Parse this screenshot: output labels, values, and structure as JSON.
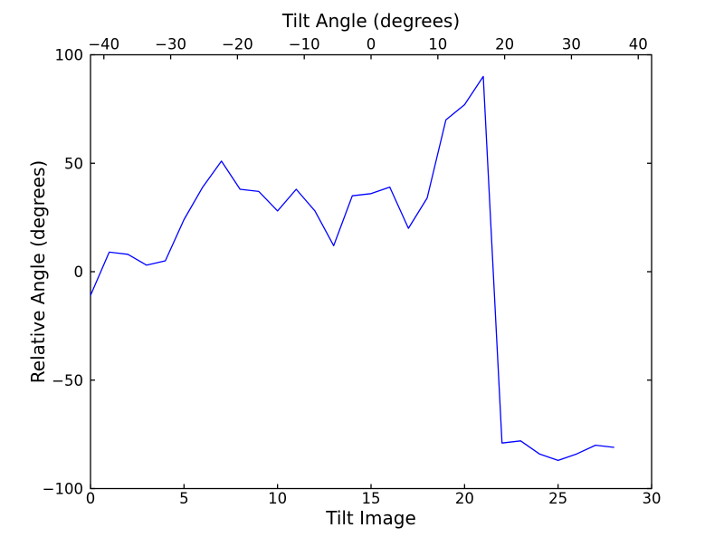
{
  "figure": {
    "background_color": "#ffffff"
  },
  "chart_data": {
    "type": "line",
    "title": "",
    "top_xlabel": "Tilt Angle (degrees)",
    "xlabel": "Tilt Image",
    "ylabel": "Relative Angle (degrees)",
    "x": [
      0,
      1,
      2,
      3,
      4,
      5,
      6,
      7,
      8,
      9,
      10,
      11,
      12,
      13,
      14,
      15,
      16,
      17,
      18,
      19,
      20,
      21,
      22,
      23,
      24,
      25,
      26,
      27,
      28
    ],
    "y": [
      -11,
      9,
      8,
      3,
      5,
      24,
      39,
      51,
      38,
      37,
      28,
      38,
      28,
      12,
      35,
      36,
      39,
      20,
      34,
      70,
      77,
      90,
      -79,
      -78,
      -84,
      -87,
      -84,
      -80,
      -81
    ],
    "xlim": [
      0,
      30
    ],
    "ylim": [
      -100,
      100
    ],
    "top_xlim": [
      -42,
      42
    ],
    "xticks": [
      0,
      5,
      10,
      15,
      20,
      25,
      30
    ],
    "xtick_labels": [
      "0",
      "5",
      "10",
      "15",
      "20",
      "25",
      "30"
    ],
    "yticks": [
      -100,
      -50,
      0,
      50,
      100
    ],
    "ytick_labels": [
      "−100",
      "−50",
      "0",
      "50",
      "100"
    ],
    "top_xticks": [
      -40,
      -30,
      -20,
      -10,
      0,
      10,
      20,
      30,
      40
    ],
    "top_xtick_labels": [
      "−40",
      "−30",
      "−20",
      "−10",
      "0",
      "10",
      "20",
      "30",
      "40"
    ],
    "grid": false,
    "legend": "none",
    "line_color": "#0000ff",
    "axis_color": "#000000"
  }
}
